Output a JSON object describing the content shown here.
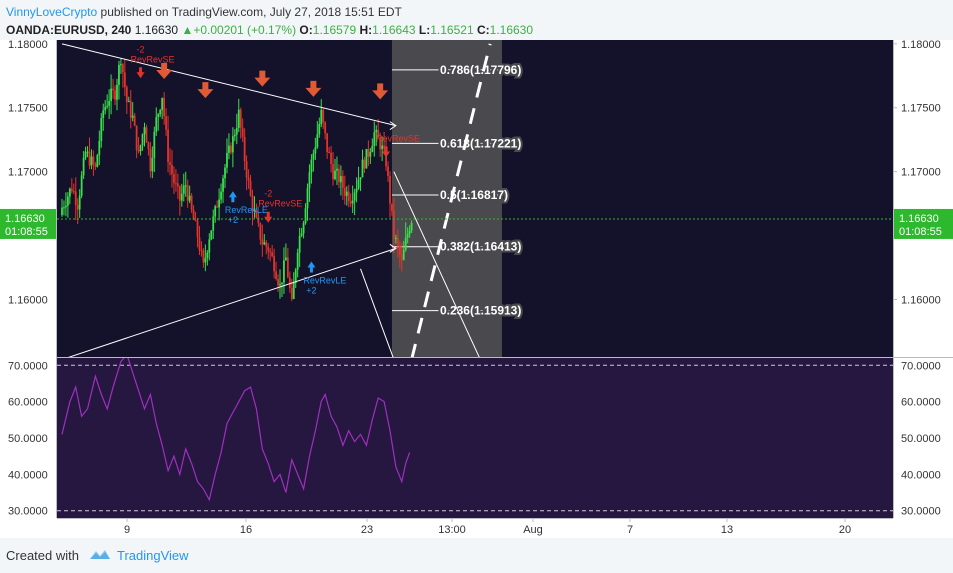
{
  "header": {
    "author": "VinnyLoveCrypto",
    "published_text": "published on TradingView.com, July 27, 2018 15:51 EDT",
    "symbol": "OANDA:EURUSD, 240",
    "last": "1.16630",
    "change_arrow": "▲",
    "change": "+0.00201 (+0.17%)",
    "o_label": "O:",
    "o_value": "1.16579",
    "h_label": "H:",
    "h_value": "1.16643",
    "l_label": "L:",
    "l_value": "1.16521",
    "c_label": "C:",
    "c_value": "1.16630"
  },
  "footer": {
    "created": "Created with",
    "brand": "TradingView"
  },
  "colors": {
    "background": "#14122a",
    "rsi_background": "#25173f",
    "bull": "#39e04b",
    "bear": "#e2332c",
    "price_tag": "#2eb82e",
    "fib_zone": "#4a4a4e",
    "rsi_line": "#a02fc0",
    "signal_long": "#2196f3",
    "signal_short": "#e2332c",
    "marker": "#e05a35"
  },
  "chart_data": [
    {
      "type": "candlestick",
      "symbol": "OANDA:EURUSD",
      "timeframe": "240",
      "ylim": [
        1.1555,
        1.1803
      ],
      "y_ticks": [
        "1.18000",
        "1.17500",
        "1.17000",
        "1.16000"
      ],
      "x_ticks": [
        "9",
        "16",
        "23",
        "13:00",
        "Aug",
        "7",
        "13",
        "20"
      ],
      "current_price": "1.16630",
      "countdown": "01:08:55",
      "close_path": [
        [
          0,
          1.1672
        ],
        [
          5,
          1.1688
        ],
        [
          8,
          1.1675
        ],
        [
          12,
          1.1715
        ],
        [
          17,
          1.1702
        ],
        [
          21,
          1.1748
        ],
        [
          24,
          1.1758
        ],
        [
          27,
          1.1762
        ],
        [
          30,
          1.179
        ],
        [
          33,
          1.1755
        ],
        [
          36,
          1.1742
        ],
        [
          39,
          1.1712
        ],
        [
          42,
          1.1738
        ],
        [
          45,
          1.1705
        ],
        [
          48,
          1.174
        ],
        [
          51,
          1.176
        ],
        [
          54,
          1.1712
        ],
        [
          57,
          1.1692
        ],
        [
          60,
          1.1678
        ],
        [
          63,
          1.169
        ],
        [
          66,
          1.1668
        ],
        [
          69,
          1.165
        ],
        [
          72,
          1.1625
        ],
        [
          75,
          1.165
        ],
        [
          78,
          1.1668
        ],
        [
          81,
          1.169
        ],
        [
          84,
          1.171
        ],
        [
          87,
          1.1725
        ],
        [
          90,
          1.1745
        ],
        [
          93,
          1.171
        ],
        [
          96,
          1.168
        ],
        [
          99,
          1.166
        ],
        [
          102,
          1.1645
        ],
        [
          105,
          1.164
        ],
        [
          108,
          1.1628
        ],
        [
          111,
          1.161
        ],
        [
          114,
          1.1632
        ],
        [
          117,
          1.1595
        ],
        [
          120,
          1.1642
        ],
        [
          123,
          1.1664
        ],
        [
          126,
          1.17
        ],
        [
          129,
          1.1722
        ],
        [
          132,
          1.1745
        ],
        [
          135,
          1.1718
        ],
        [
          138,
          1.17
        ],
        [
          141,
          1.1695
        ],
        [
          144,
          1.1685
        ],
        [
          147,
          1.168
        ],
        [
          150,
          1.169
        ],
        [
          153,
          1.1705
        ],
        [
          156,
          1.1715
        ],
        [
          159,
          1.173
        ],
        [
          162,
          1.1722
        ],
        [
          165,
          1.1708
        ],
        [
          167,
          1.1678
        ],
        [
          169,
          1.165
        ],
        [
          171,
          1.164
        ],
        [
          173,
          1.1628
        ],
        [
          175,
          1.1645
        ],
        [
          177,
          1.1658
        ],
        [
          178,
          1.1663
        ]
      ],
      "trendlines": [
        {
          "name": "upper",
          "from": [
            0,
            1.18
          ],
          "to": [
            170,
            1.1736
          ]
        },
        {
          "name": "lower",
          "from": [
            0,
            1.1553
          ],
          "to": [
            170,
            1.164
          ]
        },
        {
          "name": "projection-1",
          "from": [
            152,
            1.1624
          ],
          "to": [
            169,
            1.1553
          ]
        },
        {
          "name": "projection-2",
          "from": [
            169,
            1.17
          ],
          "to": [
            213,
            1.1553
          ]
        },
        {
          "name": "projection-dashed",
          "from": [
            178,
            1.1553
          ],
          "to": [
            218,
            1.18
          ]
        }
      ],
      "fib_zone": {
        "from_x": 168,
        "to_x": 224
      },
      "fib_levels": [
        {
          "label": "0.786(1.17796)",
          "value": 1.17796
        },
        {
          "label": "0.618(1.17221)",
          "value": 1.17221
        },
        {
          "label": "0.5(1.16817)",
          "value": 1.16817
        },
        {
          "label": "0.382(1.16413)",
          "value": 1.16413
        },
        {
          "label": "0.236(1.15913)",
          "value": 1.15913
        }
      ],
      "down_arrows": [
        {
          "x": 30,
          "value": 1.181
        },
        {
          "x": 52,
          "value": 1.1778
        },
        {
          "x": 73,
          "value": 1.1763
        },
        {
          "x": 102,
          "value": 1.1772
        },
        {
          "x": 128,
          "value": 1.1764
        },
        {
          "x": 162,
          "value": 1.1762
        }
      ],
      "signals": [
        {
          "kind": "short",
          "x": 40,
          "value": 1.1784,
          "label": "-2",
          "text": "RevRevSE"
        },
        {
          "kind": "long",
          "x": 87,
          "value": 1.168,
          "label": "+2",
          "text": "RevRevLE"
        },
        {
          "kind": "short",
          "x": 105,
          "value": 1.1671,
          "label": "-2",
          "text": "RevRevSE"
        },
        {
          "kind": "long",
          "x": 127,
          "value": 1.1625,
          "label": "+2",
          "text": "RevRevLE"
        },
        {
          "kind": "short",
          "x": 165,
          "value": 1.1722,
          "label": "",
          "text": "RevRevSE"
        }
      ]
    },
    {
      "type": "line",
      "name": "RSI",
      "ylim": [
        28,
        72
      ],
      "y_ticks": [
        "70.0000",
        "60.0000",
        "50.0000",
        "40.0000",
        "30.0000"
      ],
      "bands": [
        70,
        30
      ],
      "points": [
        [
          0,
          51
        ],
        [
          4,
          60
        ],
        [
          7,
          64
        ],
        [
          10,
          56
        ],
        [
          13,
          58
        ],
        [
          17,
          67
        ],
        [
          20,
          62
        ],
        [
          23,
          58
        ],
        [
          26,
          64
        ],
        [
          30,
          71
        ],
        [
          33,
          73
        ],
        [
          36,
          68
        ],
        [
          39,
          63
        ],
        [
          42,
          58
        ],
        [
          45,
          62
        ],
        [
          48,
          54
        ],
        [
          51,
          48
        ],
        [
          54,
          41
        ],
        [
          57,
          45
        ],
        [
          60,
          40
        ],
        [
          63,
          47
        ],
        [
          66,
          43
        ],
        [
          69,
          38
        ],
        [
          72,
          36
        ],
        [
          75,
          33
        ],
        [
          78,
          40
        ],
        [
          81,
          46
        ],
        [
          84,
          54
        ],
        [
          87,
          57
        ],
        [
          90,
          60
        ],
        [
          93,
          63
        ],
        [
          96,
          64
        ],
        [
          99,
          58
        ],
        [
          102,
          47
        ],
        [
          105,
          43
        ],
        [
          108,
          38
        ],
        [
          111,
          40
        ],
        [
          114,
          35
        ],
        [
          117,
          44
        ],
        [
          120,
          40
        ],
        [
          123,
          36
        ],
        [
          126,
          45
        ],
        [
          129,
          52
        ],
        [
          132,
          60
        ],
        [
          134,
          62
        ],
        [
          137,
          56
        ],
        [
          140,
          53
        ],
        [
          143,
          48
        ],
        [
          146,
          52
        ],
        [
          149,
          49
        ],
        [
          152,
          51
        ],
        [
          155,
          48
        ],
        [
          158,
          55
        ],
        [
          161,
          61
        ],
        [
          164,
          60
        ],
        [
          167,
          52
        ],
        [
          170,
          42
        ],
        [
          173,
          38
        ],
        [
          175,
          43
        ],
        [
          177,
          46
        ]
      ]
    }
  ]
}
